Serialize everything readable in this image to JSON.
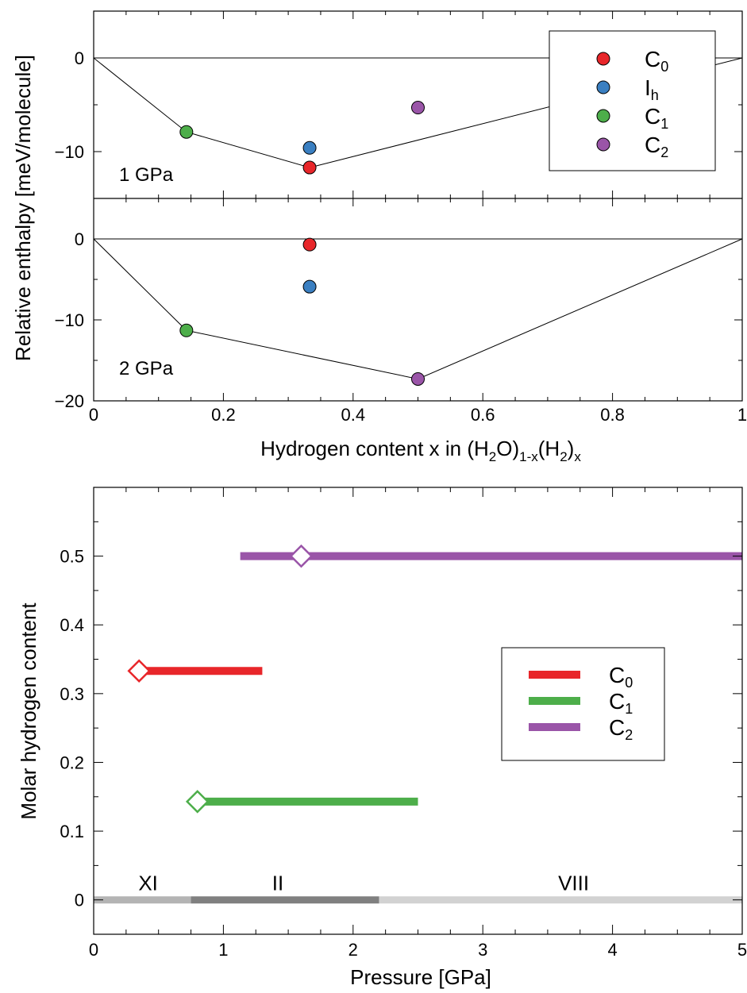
{
  "top_figure": {
    "ylabel": "Relative enthalpy [meV/molecule]",
    "xlabel_parts": [
      "Hydrogen content x in (H",
      "2",
      "O)",
      "1-x",
      "(H",
      "2",
      ")",
      "x"
    ],
    "x_ticks": [
      "0",
      "0.2",
      "0.4",
      "0.6",
      "0.8",
      "1"
    ],
    "legend": [
      {
        "main": "C",
        "sub": "0",
        "color": "#e8262a"
      },
      {
        "main": "I",
        "sub": "h",
        "color": "#3a7fc1"
      },
      {
        "main": "C",
        "sub": "1",
        "color": "#4dae4a"
      },
      {
        "main": "C",
        "sub": "2",
        "color": "#9a55a8"
      }
    ]
  },
  "bottom_figure": {
    "phase_labels": [
      "XI",
      "II",
      "VIII"
    ]
  },
  "chart_data": [
    {
      "type": "scatter",
      "panel": "upper",
      "annotation": "1 GPa",
      "xlim": [
        0,
        1
      ],
      "ylim": [
        -15,
        5
      ],
      "y_ticks": [
        "0",
        "−10"
      ],
      "hull": {
        "x": [
          0,
          0.143,
          0.333,
          1
        ],
        "y": [
          0,
          -7.9,
          -11.7,
          0
        ]
      },
      "points": [
        {
          "x": 0.333,
          "y": -11.7,
          "color": "#e8262a"
        },
        {
          "x": 0.333,
          "y": -9.6,
          "color": "#3a7fc1"
        },
        {
          "x": 0.143,
          "y": -7.9,
          "color": "#4dae4a"
        },
        {
          "x": 0.5,
          "y": -5.3,
          "color": "#9a55a8"
        }
      ]
    },
    {
      "type": "scatter",
      "panel": "lower",
      "annotation": "2 GPa",
      "xlim": [
        0,
        1
      ],
      "ylim": [
        -20,
        5
      ],
      "y_ticks": [
        "0",
        "−10",
        "−20"
      ],
      "hull": {
        "x": [
          0,
          0.143,
          0.5,
          1
        ],
        "y": [
          0,
          -11.3,
          -17.3,
          0
        ]
      },
      "points": [
        {
          "x": 0.333,
          "y": -0.7,
          "color": "#e8262a"
        },
        {
          "x": 0.333,
          "y": -5.9,
          "color": "#3a7fc1"
        },
        {
          "x": 0.143,
          "y": -11.3,
          "color": "#4dae4a"
        },
        {
          "x": 0.5,
          "y": -17.3,
          "color": "#9a55a8"
        }
      ]
    },
    {
      "type": "line",
      "panel": "bottom",
      "xlabel": "Pressure [GPa]",
      "ylabel": "Molar hydrogen content",
      "xlim": [
        0,
        5
      ],
      "ylim": [
        -0.05,
        0.6
      ],
      "x_ticks": [
        "0",
        "1",
        "2",
        "3",
        "4",
        "5"
      ],
      "y_ticks": [
        "0",
        "0.1",
        "0.2",
        "0.3",
        "0.4",
        "0.5"
      ],
      "series": [
        {
          "name": "C0",
          "label_main": "C",
          "label_sub": "0",
          "color": "#e8262a",
          "y": 0.333,
          "x_range": [
            0.3,
            1.3
          ],
          "marker_x": 0.35
        },
        {
          "name": "C1",
          "label_main": "C",
          "label_sub": "1",
          "color": "#4dae4a",
          "y": 0.143,
          "x_range": [
            0.78,
            2.5
          ],
          "marker_x": 0.8
        },
        {
          "name": "C2",
          "label_main": "C",
          "label_sub": "2",
          "color": "#9a55a8",
          "y": 0.5,
          "x_range": [
            1.13,
            5.0
          ],
          "marker_x": 1.6
        }
      ],
      "phases": [
        {
          "label": "XI",
          "x_range": [
            0,
            0.75
          ],
          "color": "#b4b4b4",
          "label_x": 0.42
        },
        {
          "label": "II",
          "x_range": [
            0.75,
            2.2
          ],
          "color": "#808080",
          "label_x": 1.42
        },
        {
          "label": "VIII",
          "x_range": [
            2.2,
            5.0
          ],
          "color": "#d2d2d2",
          "label_x": 3.7
        }
      ]
    }
  ]
}
